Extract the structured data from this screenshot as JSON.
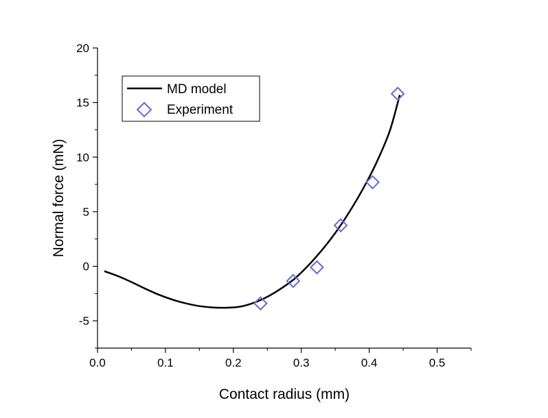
{
  "chart_data": {
    "type": "line",
    "title": "",
    "xlabel": "Contact radius (mm)",
    "ylabel": "Normal force (mN)",
    "xlim": [
      0.0,
      0.55
    ],
    "ylim": [
      -7.5,
      20
    ],
    "x_ticks": [
      0.0,
      0.1,
      0.2,
      0.3,
      0.4,
      0.5
    ],
    "x_tick_labels": [
      "0.0",
      "0.1",
      "0.2",
      "0.3",
      "0.4",
      "0.5"
    ],
    "y_ticks": [
      -5,
      0,
      5,
      10,
      15,
      20
    ],
    "y_tick_labels": [
      "-5",
      "0",
      "5",
      "10",
      "15",
      "20"
    ],
    "grid": false,
    "legend_position": "top-left",
    "series": [
      {
        "name": "MD model",
        "kind": "line",
        "color": "#000000",
        "x": [
          0.01,
          0.03,
          0.05,
          0.07,
          0.09,
          0.11,
          0.13,
          0.15,
          0.17,
          0.19,
          0.21,
          0.23,
          0.25,
          0.27,
          0.29,
          0.31,
          0.33,
          0.35,
          0.37,
          0.39,
          0.41,
          0.43,
          0.445
        ],
        "y": [
          -0.45,
          -0.9,
          -1.45,
          -2.05,
          -2.6,
          -3.05,
          -3.4,
          -3.65,
          -3.78,
          -3.8,
          -3.7,
          -3.35,
          -2.8,
          -2.05,
          -1.15,
          0.05,
          1.45,
          3.05,
          4.9,
          7.0,
          9.4,
          12.35,
          15.7
        ]
      },
      {
        "name": "Experiment",
        "kind": "scatter",
        "marker": "diamond",
        "color": "#6666dd",
        "x": [
          0.24,
          0.288,
          0.323,
          0.358,
          0.405,
          0.442
        ],
        "y": [
          -3.4,
          -1.35,
          -0.1,
          3.75,
          7.7,
          15.8
        ]
      }
    ]
  }
}
